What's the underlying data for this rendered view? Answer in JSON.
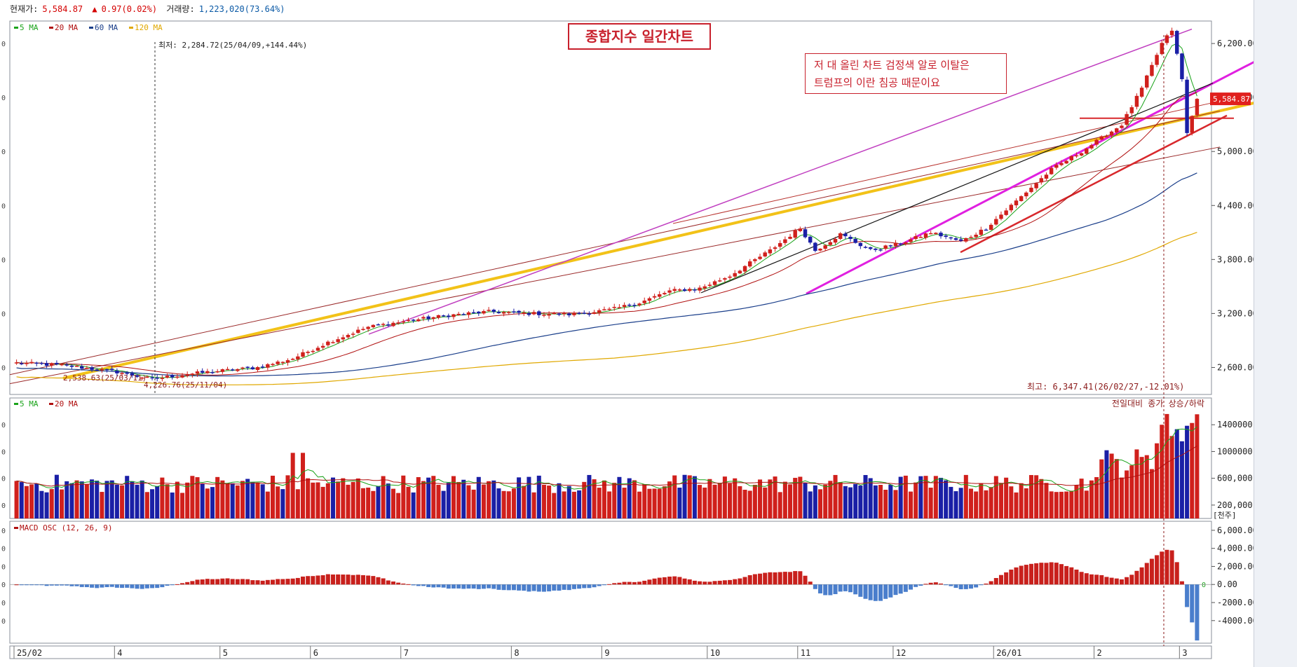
{
  "header": {
    "price_label": "현재가:",
    "price": "5,584.87",
    "change": "0.97(0.02%)",
    "volume_label": "거래량:",
    "volume": "1,223,020(73.64%)"
  },
  "annotations": {
    "chart_title": "종합지수 일간차트",
    "comment_line1": "저 대 올린 차트 검정색 알로 이탈은",
    "comment_line2": "트럼프의 이란 침공 때문이요",
    "min_label": "최저: 2,284.72(25/04/09,+144.44%)",
    "max_label": "최고: 6,347.41(26/02/27,-12.01%)",
    "low_left_label": "2,538.63(25/03/11)",
    "low_mid_label": "4,226.76(25/11/04)",
    "price_tag": "5,584.87",
    "volume_caption": "전일대비 종가 상승/하락",
    "volume_unit": "[천주]",
    "zero_label": "0"
  },
  "colors": {
    "up": "#d0201c",
    "down": "#1a1fa6",
    "ma5": "#1aa31a",
    "ma20": "#b01010",
    "ma60": "#1a3e8a",
    "ma120": "#e0a800",
    "macd_up": "#c8201c",
    "macd_down": "#4a7ecc"
  },
  "chart_data": [
    {
      "type": "candlestick",
      "name": "price",
      "legend": [
        "5 MA",
        "20 MA",
        "60 MA",
        "120 MA"
      ],
      "ylim": [
        2300,
        6450
      ],
      "y_ticks": [
        2600,
        3200,
        3800,
        4400,
        5000,
        5600,
        6200
      ],
      "y_tick_labels": [
        "2,600.00",
        "3,200.00",
        "3,800.00",
        "4,400.00",
        "5,000.00",
        "5,600.00",
        "6,200.00"
      ],
      "x_ticks": [
        {
          "i": 0,
          "label": "25/02"
        },
        {
          "i": 20,
          "label": "4"
        },
        {
          "i": 41,
          "label": "5"
        },
        {
          "i": 59,
          "label": "6"
        },
        {
          "i": 77,
          "label": "7"
        },
        {
          "i": 99,
          "label": "8"
        },
        {
          "i": 117,
          "label": "9"
        },
        {
          "i": 138,
          "label": "10"
        },
        {
          "i": 156,
          "label": "11"
        },
        {
          "i": 175,
          "label": "12"
        },
        {
          "i": 195,
          "label": "26/01"
        },
        {
          "i": 215,
          "label": "2"
        },
        {
          "i": 232,
          "label": "3"
        }
      ],
      "n_bars": 236,
      "anchors": [
        [
          0,
          2650
        ],
        [
          10,
          2620
        ],
        [
          20,
          2550
        ],
        [
          27,
          2470
        ],
        [
          33,
          2520
        ],
        [
          40,
          2560
        ],
        [
          48,
          2600
        ],
        [
          55,
          2700
        ],
        [
          62,
          2880
        ],
        [
          70,
          3050
        ],
        [
          78,
          3120
        ],
        [
          86,
          3180
        ],
        [
          94,
          3220
        ],
        [
          102,
          3200
        ],
        [
          110,
          3190
        ],
        [
          118,
          3240
        ],
        [
          124,
          3320
        ],
        [
          130,
          3450
        ],
        [
          136,
          3480
        ],
        [
          142,
          3620
        ],
        [
          150,
          3900
        ],
        [
          156,
          4150
        ],
        [
          159,
          3900
        ],
        [
          164,
          4080
        ],
        [
          170,
          3900
        ],
        [
          176,
          3980
        ],
        [
          182,
          4100
        ],
        [
          188,
          4000
        ],
        [
          193,
          4150
        ],
        [
          200,
          4500
        ],
        [
          206,
          4800
        ],
        [
          212,
          5000
        ],
        [
          216,
          5150
        ],
        [
          220,
          5300
        ],
        [
          224,
          5700
        ],
        [
          228,
          6200
        ],
        [
          230,
          6350
        ],
        [
          232,
          5800
        ],
        [
          233,
          5200
        ],
        [
          235,
          5585
        ]
      ]
    },
    {
      "type": "bar",
      "name": "volume",
      "legend": [
        "5 MA",
        "20 MA"
      ],
      "ylim": [
        0,
        1800000
      ],
      "y_ticks": [
        200000,
        600000,
        1000000,
        1400000
      ],
      "y_tick_labels": [
        "200,000",
        "600,000",
        "1000000",
        "1400000"
      ]
    },
    {
      "type": "bar",
      "name": "macd_osc",
      "legend": [
        "MACD OSC (12, 26, 9)"
      ],
      "ylim": [
        -6500,
        7000
      ],
      "y_ticks": [
        -4000,
        -2000,
        0,
        2000,
        4000,
        6000
      ],
      "y_tick_labels": [
        "-4000.00",
        "-2000.00",
        "0.00",
        "2,000.00",
        "4,000.00",
        "6,000.00"
      ]
    }
  ]
}
